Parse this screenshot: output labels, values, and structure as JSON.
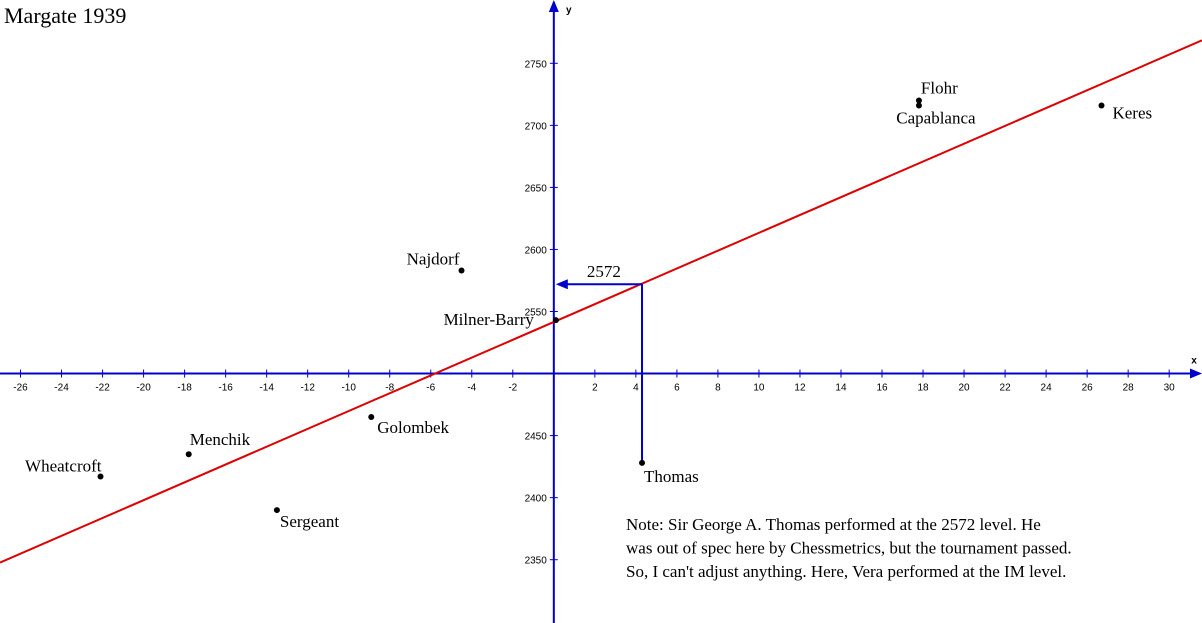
{
  "chart_data": {
    "type": "scatter",
    "title": "Margate 1939",
    "x_label": "x",
    "y_label": "y",
    "labels": [
      "Flohr",
      "Capablanca",
      "Keres",
      "Najdorf",
      "Milner-Barry",
      "Golombek",
      "Menchik",
      "Wheatcroft",
      "Sergeant",
      "Thomas"
    ],
    "x": [
      17.8,
      17.8,
      26.7,
      -4.5,
      0.1,
      -8.9,
      -17.8,
      -22.1,
      -13.5,
      4.3
    ],
    "values": [
      2720,
      2716,
      2716,
      2583,
      2543,
      2465,
      2435,
      2417,
      2390,
      2428
    ],
    "point_color": "#000000",
    "trend_line": {
      "x": [
        -27,
        31.6
      ],
      "y": [
        2347.7,
        2768.5
      ],
      "color": "#dd0000"
    },
    "annotation": {
      "x": 4.3,
      "y": 2572,
      "color": "#0000cc"
    },
    "axis_color": "#0000cc",
    "xlim": [
      -27,
      31.6
    ],
    "ylim": [
      2299,
      2801
    ],
    "x_axis_at": 2500,
    "y_axis_at": 0,
    "xticks": [
      -26,
      -24,
      -22,
      -20,
      -18,
      -16,
      -14,
      -12,
      -10,
      -8,
      -6,
      -4,
      -2,
      2,
      4,
      6,
      8,
      10,
      12,
      14,
      16,
      18,
      20,
      22,
      24,
      26,
      28,
      30
    ],
    "yticks": [
      2350,
      2400,
      2450,
      2550,
      2600,
      2650,
      2700,
      2750
    ],
    "note": [
      "Note: Sir George A. Thomas performed at the 2572 level. He",
      "was out of spec here by Chessmetrics, but the tournament passed.",
      "So, I can't adjust anything. Here, Vera performed at the IM level."
    ]
  }
}
